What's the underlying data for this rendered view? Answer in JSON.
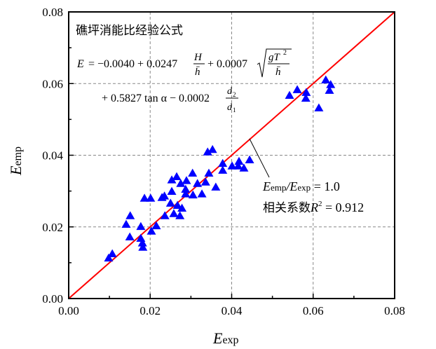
{
  "chart_data": {
    "type": "scatter",
    "title": "",
    "xlabel": {
      "main": "E",
      "sub": "exp"
    },
    "ylabel": {
      "main": "E",
      "sub": "emp"
    },
    "xlim": [
      0,
      0.08
    ],
    "ylim": [
      0,
      0.08
    ],
    "x_major_ticks": [
      0,
      0.02,
      0.04,
      0.06,
      0.08
    ],
    "y_major_ticks": [
      0,
      0.02,
      0.04,
      0.06,
      0.08
    ],
    "x_tick_labels": [
      "0.00",
      "0.02",
      "0.04",
      "0.06",
      "0.08"
    ],
    "y_tick_labels": [
      "0.00",
      "0.02",
      "0.04",
      "0.06",
      "0.08"
    ],
    "minor_ticks": [
      0.01,
      0.03,
      0.05,
      0.07
    ],
    "grid": "dashed",
    "marker": "triangle",
    "marker_color": "#0000ff",
    "reference_line": {
      "label": "Eemp/Eexp = 1.0",
      "slope": 1.0,
      "color": "#ff0000",
      "from": [
        0,
        0
      ],
      "to": [
        0.08,
        0.08
      ]
    },
    "series": [
      {
        "name": "data",
        "points": [
          [
            0.0098,
            0.0113
          ],
          [
            0.0107,
            0.0125
          ],
          [
            0.0151,
            0.0231
          ],
          [
            0.0141,
            0.0207
          ],
          [
            0.015,
            0.0172
          ],
          [
            0.0177,
            0.0201
          ],
          [
            0.0177,
            0.0168
          ],
          [
            0.0181,
            0.0155
          ],
          [
            0.0182,
            0.0143
          ],
          [
            0.0186,
            0.028
          ],
          [
            0.0201,
            0.028
          ],
          [
            0.0203,
            0.0188
          ],
          [
            0.0215,
            0.0203
          ],
          [
            0.0229,
            0.0282
          ],
          [
            0.0235,
            0.0286
          ],
          [
            0.0236,
            0.0231
          ],
          [
            0.0253,
            0.0299
          ],
          [
            0.025,
            0.0266
          ],
          [
            0.0253,
            0.0331
          ],
          [
            0.0265,
            0.034
          ],
          [
            0.0258,
            0.0237
          ],
          [
            0.0273,
            0.0231
          ],
          [
            0.0267,
            0.026
          ],
          [
            0.0278,
            0.0252
          ],
          [
            0.0275,
            0.0321
          ],
          [
            0.0289,
            0.0329
          ],
          [
            0.0287,
            0.0305
          ],
          [
            0.0287,
            0.0292
          ],
          [
            0.0304,
            0.035
          ],
          [
            0.0305,
            0.0289
          ],
          [
            0.0316,
            0.0321
          ],
          [
            0.0327,
            0.0292
          ],
          [
            0.0336,
            0.0325
          ],
          [
            0.0344,
            0.035
          ],
          [
            0.0361,
            0.0311
          ],
          [
            0.0341,
            0.0409
          ],
          [
            0.0353,
            0.0416
          ],
          [
            0.0378,
            0.0377
          ],
          [
            0.0378,
            0.0358
          ],
          [
            0.0401,
            0.037
          ],
          [
            0.0418,
            0.0383
          ],
          [
            0.0416,
            0.037
          ],
          [
            0.043,
            0.0364
          ],
          [
            0.0444,
            0.0387
          ],
          [
            0.0542,
            0.0567
          ],
          [
            0.0561,
            0.0583
          ],
          [
            0.0583,
            0.0575
          ],
          [
            0.0582,
            0.0559
          ],
          [
            0.0614,
            0.0532
          ],
          [
            0.0631,
            0.061
          ],
          [
            0.0643,
            0.0597
          ],
          [
            0.064,
            0.0581
          ]
        ]
      }
    ],
    "annotations": {
      "formula_title": "礁坪消能比经验公式",
      "formula_line1": {
        "lhs": "E",
        "eq": "= −0.0040 + 0.0247",
        "frac1_num": "H",
        "frac1_den": "h̄",
        "plus2": "+ 0.0007",
        "sqrt_num": "gT",
        "sqrt_num_sup": "2",
        "sqrt_den": "h̄"
      },
      "formula_line2": {
        "text": "+ 0.5827 tan α − 0.0002",
        "frac_num": "d",
        "frac_num_sub": "2",
        "frac_den": "d",
        "frac_den_sub": "1"
      },
      "ratio_label": {
        "e1": "E",
        "s1": "emp",
        "slash": "/",
        "e2": "E",
        "s2": "exp",
        "rest": " = 1.0"
      },
      "r2_label": {
        "prefix": "相关系数",
        "R": "R",
        "sup": "2",
        "rest": " = 0.912"
      }
    }
  }
}
